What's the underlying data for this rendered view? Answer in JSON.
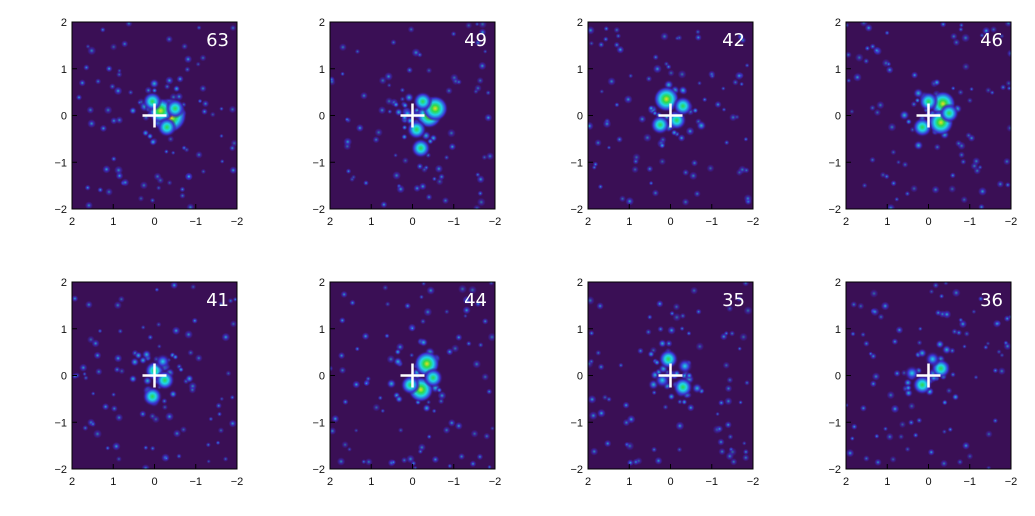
{
  "colors": {
    "background": "#3a0f55",
    "blob_low": "#3b2fd0",
    "blob_mid": "#1fd6e8",
    "blob_high": "#2fd84a",
    "blob_peak": "#e8e020",
    "blob_max": "#e02020",
    "cross": "#ffffff",
    "axis": "#000000"
  },
  "chart_data": [
    {
      "type": "heatmap",
      "label": "63",
      "xlim": [
        2,
        -2
      ],
      "ylim": [
        -2,
        2
      ],
      "x_ticks": [
        "2",
        "1",
        "0",
        "−1",
        "−2"
      ],
      "y_ticks": [
        "2",
        "1",
        "0",
        "−1",
        "−2"
      ],
      "crosshair": [
        0,
        0
      ],
      "peaks": [
        {
          "x": -0.35,
          "y": 0.0,
          "level": 5
        },
        {
          "x": -0.15,
          "y": 0.1,
          "level": 3
        },
        {
          "x": -0.5,
          "y": 0.15,
          "level": 2
        },
        {
          "x": 0.05,
          "y": 0.3,
          "level": 2
        },
        {
          "x": -0.3,
          "y": -0.25,
          "level": 2
        }
      ]
    },
    {
      "type": "heatmap",
      "label": "49",
      "xlim": [
        2,
        -2
      ],
      "ylim": [
        -2,
        2
      ],
      "x_ticks": [
        "2",
        "1",
        "0",
        "−1",
        "−2"
      ],
      "y_ticks": [
        "2",
        "1",
        "0",
        "−1",
        "−2"
      ],
      "crosshair": [
        0,
        0
      ],
      "peaks": [
        {
          "x": -0.4,
          "y": 0.0,
          "level": 3
        },
        {
          "x": -0.55,
          "y": 0.15,
          "level": 3
        },
        {
          "x": -0.25,
          "y": 0.3,
          "level": 2
        },
        {
          "x": -0.2,
          "y": -0.7,
          "level": 2
        },
        {
          "x": -0.1,
          "y": -0.3,
          "level": 2
        }
      ]
    },
    {
      "type": "heatmap",
      "label": "42",
      "xlim": [
        2,
        -2
      ],
      "ylim": [
        -2,
        2
      ],
      "x_ticks": [
        "2",
        "1",
        "0",
        "−1",
        "−2"
      ],
      "y_ticks": [
        "2",
        "1",
        "0",
        "−1",
        "−2"
      ],
      "crosshair": [
        0,
        0
      ],
      "peaks": [
        {
          "x": 0.1,
          "y": 0.35,
          "level": 3
        },
        {
          "x": -0.15,
          "y": -0.1,
          "level": 2
        },
        {
          "x": -0.3,
          "y": 0.2,
          "level": 2
        },
        {
          "x": 0.25,
          "y": -0.2,
          "level": 2
        }
      ]
    },
    {
      "type": "heatmap",
      "label": "46",
      "xlim": [
        2,
        -2
      ],
      "ylim": [
        -2,
        2
      ],
      "x_ticks": [
        "2",
        "1",
        "0",
        "−1",
        "−2"
      ],
      "y_ticks": [
        "2",
        "1",
        "0",
        "−1",
        "−2"
      ],
      "crosshair": [
        0,
        0
      ],
      "peaks": [
        {
          "x": -0.35,
          "y": 0.25,
          "level": 3
        },
        {
          "x": -0.3,
          "y": -0.15,
          "level": 3
        },
        {
          "x": 0.0,
          "y": 0.3,
          "level": 2
        },
        {
          "x": -0.5,
          "y": 0.05,
          "level": 2
        },
        {
          "x": 0.15,
          "y": -0.25,
          "level": 2
        }
      ]
    },
    {
      "type": "heatmap",
      "label": "41",
      "xlim": [
        2,
        -2
      ],
      "ylim": [
        -2,
        2
      ],
      "x_ticks": [
        "2",
        "1",
        "0",
        "−1",
        "−2"
      ],
      "y_ticks": [
        "2",
        "1",
        "0",
        "−1",
        "−2"
      ],
      "crosshair": [
        0,
        0
      ],
      "peaks": [
        {
          "x": 0.0,
          "y": 0.1,
          "level": 2
        },
        {
          "x": -0.25,
          "y": -0.1,
          "level": 2
        },
        {
          "x": 0.05,
          "y": -0.45,
          "level": 2
        },
        {
          "x": -0.2,
          "y": 0.3,
          "level": 1
        }
      ]
    },
    {
      "type": "heatmap",
      "label": "44",
      "xlim": [
        2,
        -2
      ],
      "ylim": [
        -2,
        2
      ],
      "x_ticks": [
        "2",
        "1",
        "0",
        "−1",
        "−2"
      ],
      "y_ticks": [
        "2",
        "1",
        "0",
        "−1",
        "−2"
      ],
      "crosshair": [
        0,
        0
      ],
      "peaks": [
        {
          "x": -0.35,
          "y": 0.25,
          "level": 3
        },
        {
          "x": -0.2,
          "y": -0.3,
          "level": 3
        },
        {
          "x": -0.5,
          "y": -0.05,
          "level": 2
        },
        {
          "x": 0.05,
          "y": -0.2,
          "level": 2
        }
      ]
    },
    {
      "type": "heatmap",
      "label": "35",
      "xlim": [
        2,
        -2
      ],
      "ylim": [
        -2,
        2
      ],
      "x_ticks": [
        "2",
        "1",
        "0",
        "−1",
        "−2"
      ],
      "y_ticks": [
        "2",
        "1",
        "0",
        "−1",
        "−2"
      ],
      "crosshair": [
        0,
        0
      ],
      "peaks": [
        {
          "x": -0.3,
          "y": -0.25,
          "level": 2
        },
        {
          "x": 0.05,
          "y": 0.35,
          "level": 2
        },
        {
          "x": -0.35,
          "y": 0.2,
          "level": 1
        },
        {
          "x": 0.2,
          "y": -0.1,
          "level": 1
        }
      ]
    },
    {
      "type": "heatmap",
      "label": "36",
      "xlim": [
        2,
        -2
      ],
      "ylim": [
        -2,
        2
      ],
      "x_ticks": [
        "2",
        "1",
        "0",
        "−1",
        "−2"
      ],
      "y_ticks": [
        "2",
        "1",
        "0",
        "−1",
        "−2"
      ],
      "crosshair": [
        0,
        0
      ],
      "peaks": [
        {
          "x": -0.3,
          "y": 0.15,
          "level": 2
        },
        {
          "x": 0.15,
          "y": -0.2,
          "level": 2
        },
        {
          "x": -0.1,
          "y": 0.35,
          "level": 1
        },
        {
          "x": 0.4,
          "y": 0.05,
          "level": 1
        }
      ]
    }
  ]
}
